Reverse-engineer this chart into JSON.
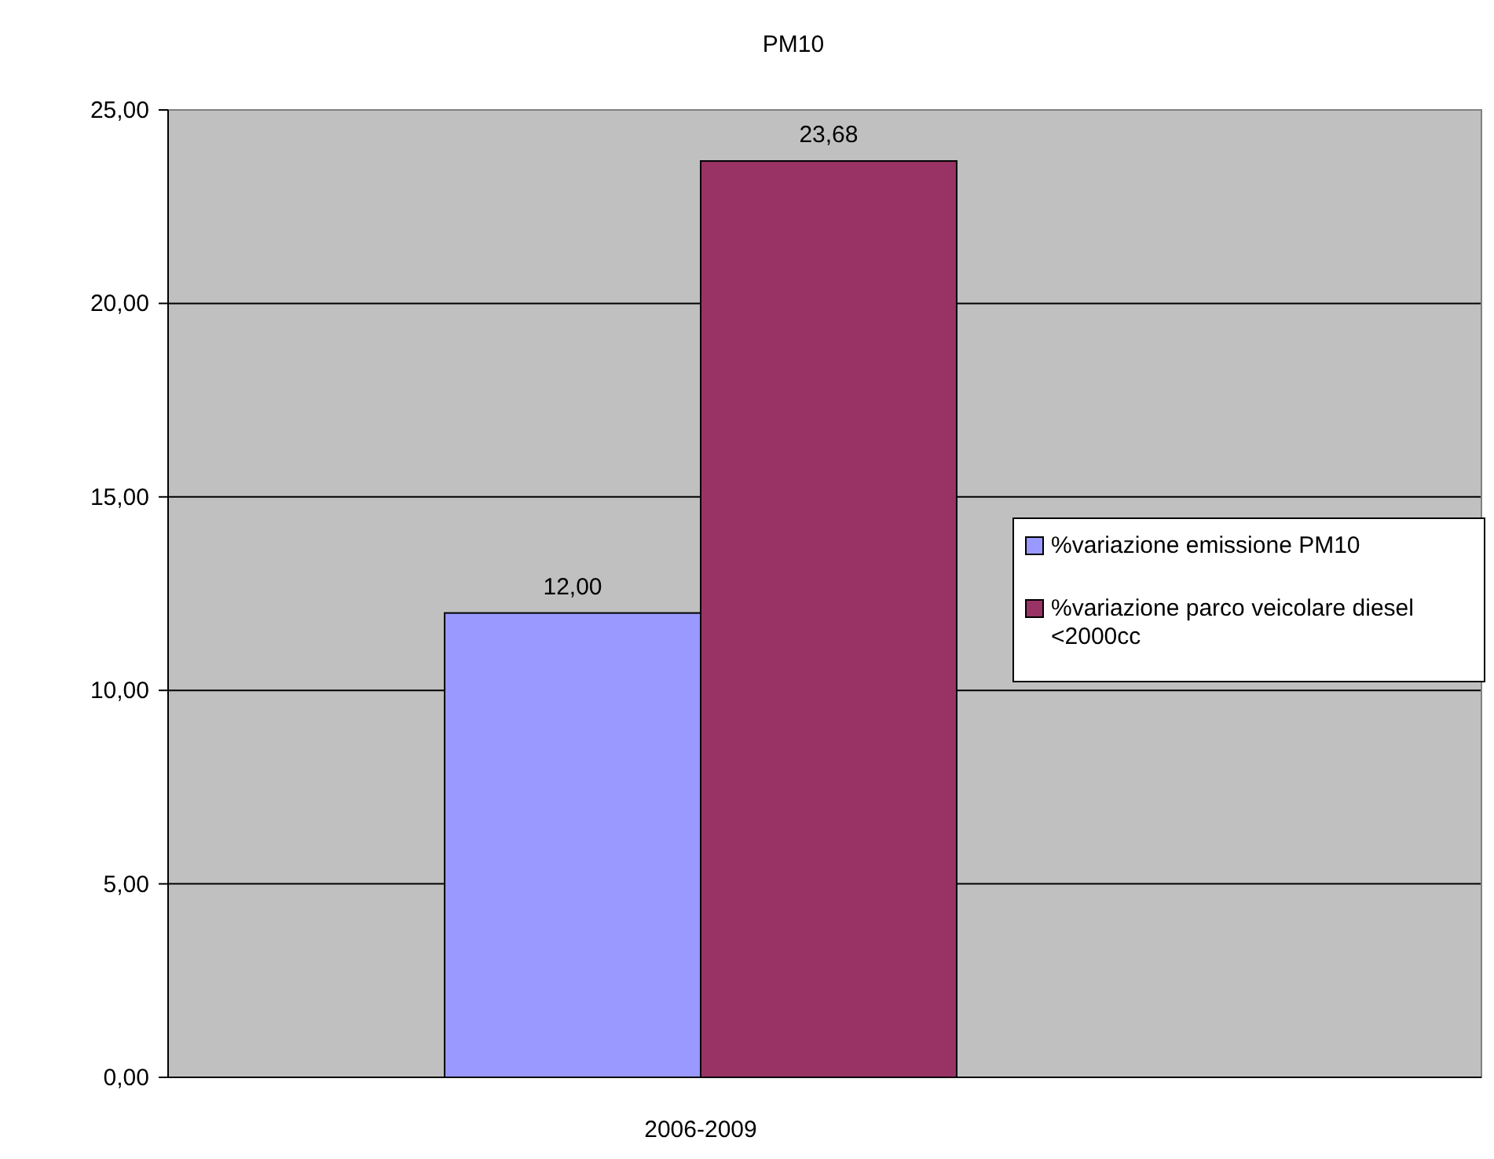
{
  "chart_data": {
    "type": "bar",
    "title": "PM10",
    "categories": [
      "2006-2009"
    ],
    "series": [
      {
        "name": "%variazione emissione PM10",
        "color": "#9999ff",
        "values": [
          12.0
        ],
        "value_labels": [
          "12,00"
        ]
      },
      {
        "name": "%variazione parco veicolare diesel <2000cc",
        "color": "#993366",
        "values": [
          23.68
        ],
        "value_labels": [
          "23,68"
        ]
      }
    ],
    "ylim": [
      0,
      25
    ],
    "yticks": [
      {
        "value": 0,
        "label": "0,00"
      },
      {
        "value": 5,
        "label": "5,00"
      },
      {
        "value": 10,
        "label": "10,00"
      },
      {
        "value": 15,
        "label": "15,00"
      },
      {
        "value": 20,
        "label": "20,00"
      },
      {
        "value": 25,
        "label": "25,00"
      }
    ],
    "grid": "y",
    "legend": "right"
  }
}
